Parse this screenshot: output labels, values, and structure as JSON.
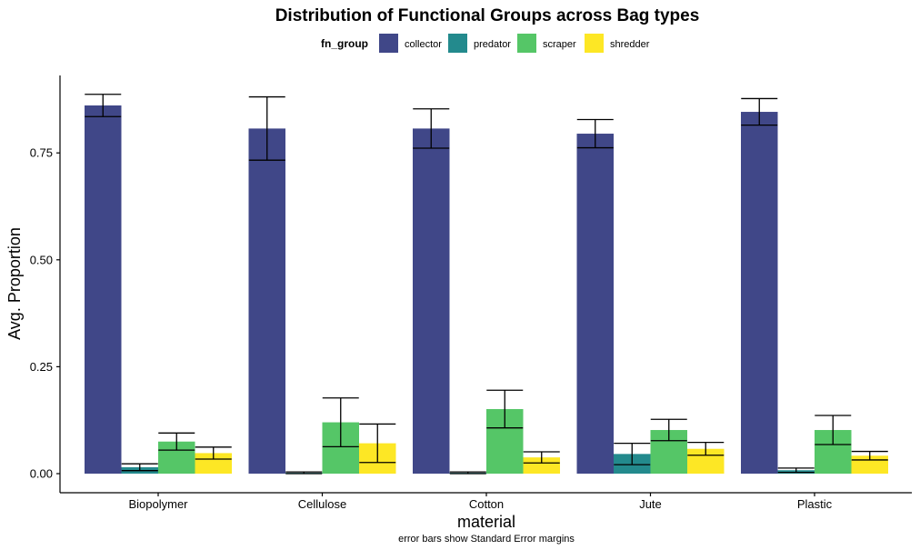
{
  "chart_data": {
    "type": "bar",
    "title": "Distribution of Functional Groups across Bag types",
    "xlabel": "material",
    "ylabel": "Avg. Proportion",
    "caption": "error bars show Standard Error margins",
    "legend_title": "fn_group",
    "legend_position": "top",
    "grid": false,
    "ylim": [
      0,
      0.886
    ],
    "yticks": [
      0.0,
      0.25,
      0.5,
      0.75
    ],
    "ytick_labels": [
      "0.00",
      "0.25",
      "0.50",
      "0.75"
    ],
    "categories": [
      "Biopolymer",
      "Cellulose",
      "Cotton",
      "Jute",
      "Plastic"
    ],
    "series": [
      {
        "name": "collector",
        "color": "#404788",
        "values": [
          0.861,
          0.807,
          0.807,
          0.795,
          0.846
        ],
        "errors": [
          0.026,
          0.074,
          0.046,
          0.033,
          0.031
        ]
      },
      {
        "name": "predator",
        "color": "#238A8D",
        "values": [
          0.015,
          0.002,
          0.002,
          0.046,
          0.008
        ],
        "errors": [
          0.008,
          0.002,
          0.002,
          0.025,
          0.005
        ]
      },
      {
        "name": "scraper",
        "color": "#55C667",
        "values": [
          0.075,
          0.12,
          0.151,
          0.102,
          0.102
        ],
        "errors": [
          0.02,
          0.057,
          0.044,
          0.025,
          0.034
        ]
      },
      {
        "name": "shredder",
        "color": "#FDE725",
        "values": [
          0.048,
          0.071,
          0.038,
          0.058,
          0.042
        ],
        "errors": [
          0.014,
          0.045,
          0.013,
          0.015,
          0.01
        ]
      }
    ]
  }
}
